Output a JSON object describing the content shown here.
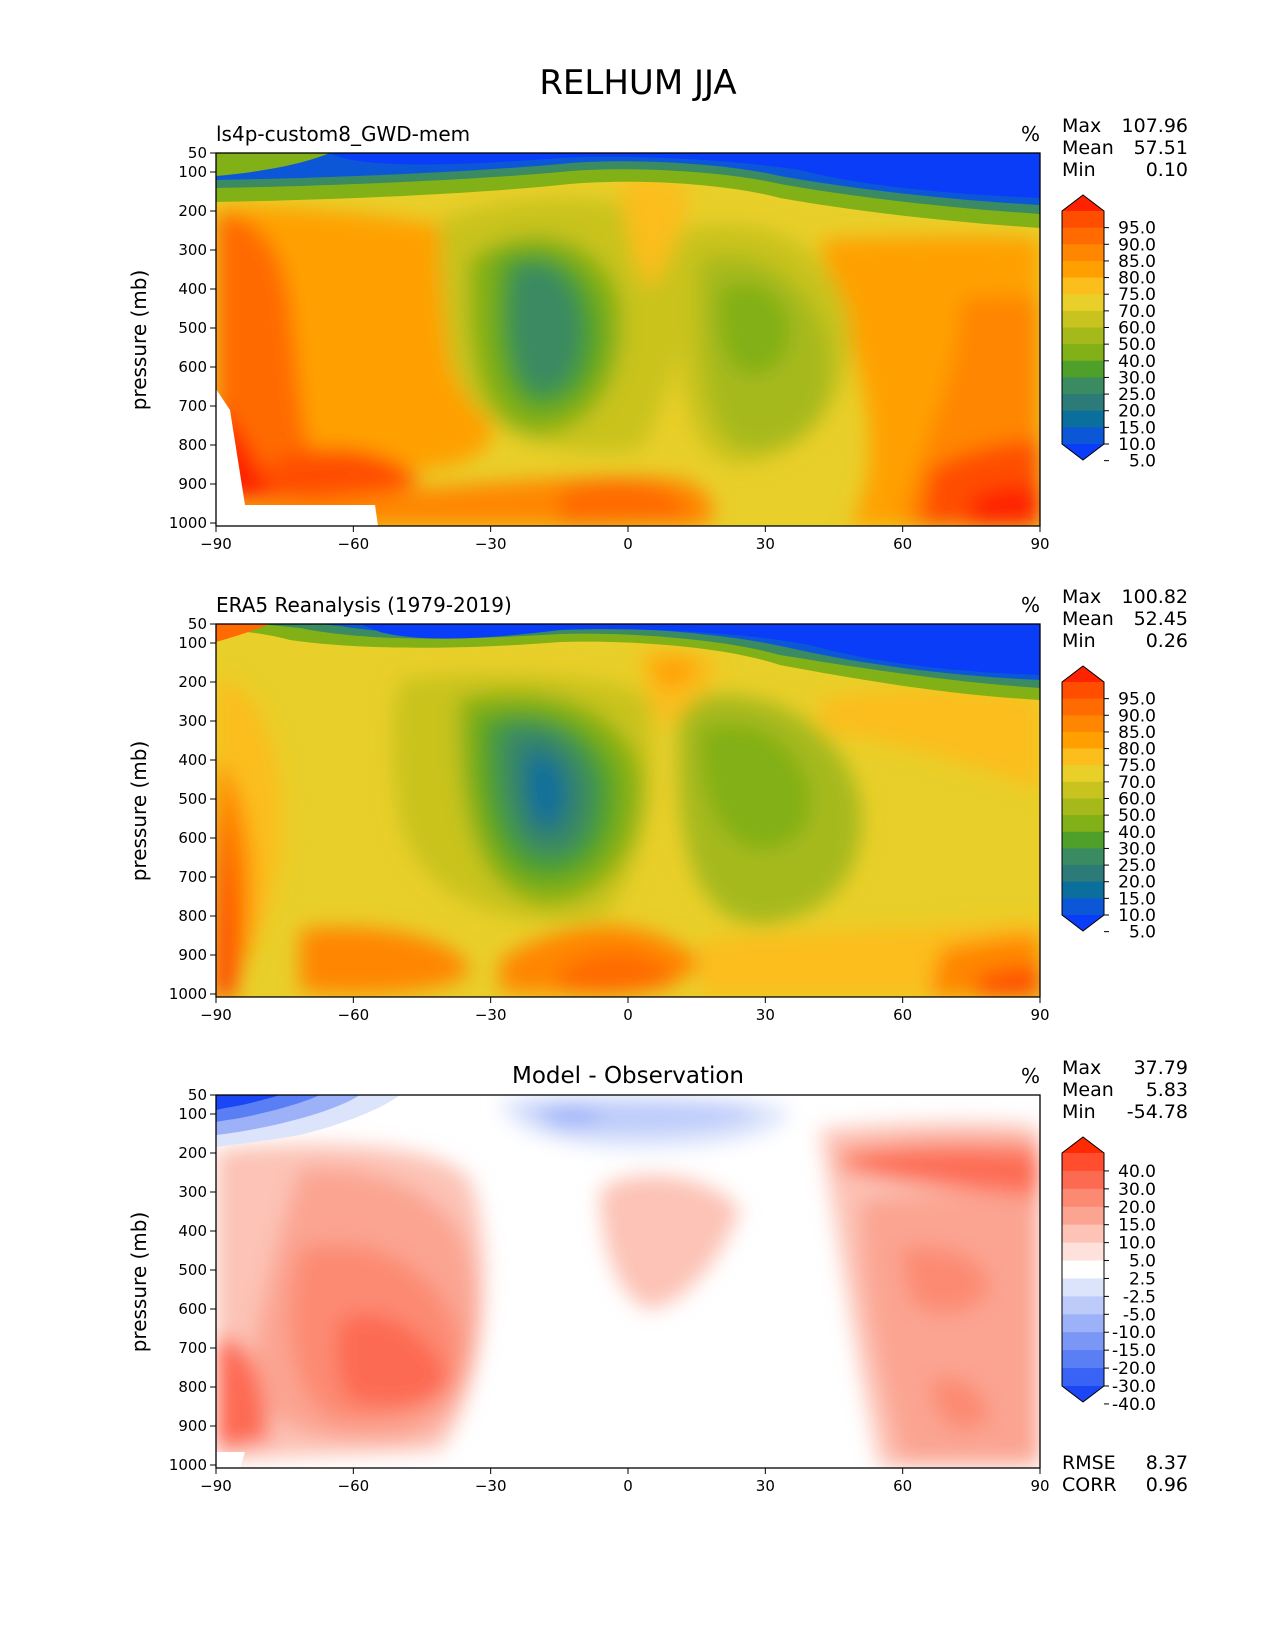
{
  "figure_title": "RELHUM JJA",
  "chart_data": [
    {
      "type": "heatmap",
      "title": "ls4p-custom8_GWD-mem",
      "units": "%",
      "ylabel": "pressure (mb)",
      "x_ticks": [
        "−90",
        "−60",
        "−30",
        "0",
        "30",
        "60",
        "90"
      ],
      "y_ticks": [
        "50",
        "100",
        "200",
        "300",
        "400",
        "500",
        "600",
        "700",
        "800",
        "900",
        "1000"
      ],
      "xlim": [
        -90,
        90
      ],
      "ylim": [
        1000,
        50
      ],
      "stats": [
        {
          "label": "Max",
          "value": "107.96"
        },
        {
          "label": "Mean",
          "value": "57.51"
        },
        {
          "label": "Min",
          "value": "0.10"
        }
      ],
      "colorbar": {
        "labels": [
          "95.0",
          "90.0",
          "85.0",
          "80.0",
          "75.0",
          "70.0",
          "60.0",
          "50.0",
          "40.0",
          "30.0",
          "25.0",
          "20.0",
          "15.0",
          "10.0",
          "5.0"
        ],
        "colors": [
          "#ff2200",
          "#ff4e00",
          "#ff6b00",
          "#ff8600",
          "#ffa000",
          "#fbbe1c",
          "#e9cf2a",
          "#c9c31f",
          "#a6b91b",
          "#82b017",
          "#4ea02a",
          "#3a8a62",
          "#2c7b78",
          "#0a6f9c",
          "#0c57d8",
          "#0a3df8"
        ]
      }
    },
    {
      "type": "heatmap",
      "title": "ERA5 Reanalysis (1979-2019)",
      "units": "%",
      "ylabel": "pressure (mb)",
      "x_ticks": [
        "−90",
        "−60",
        "−30",
        "0",
        "30",
        "60",
        "90"
      ],
      "y_ticks": [
        "50",
        "100",
        "200",
        "300",
        "400",
        "500",
        "600",
        "700",
        "800",
        "900",
        "1000"
      ],
      "xlim": [
        -90,
        90
      ],
      "ylim": [
        1000,
        50
      ],
      "stats": [
        {
          "label": "Max",
          "value": "100.82"
        },
        {
          "label": "Mean",
          "value": "52.45"
        },
        {
          "label": "Min",
          "value": "0.26"
        }
      ],
      "colorbar": {
        "labels": [
          "95.0",
          "90.0",
          "85.0",
          "80.0",
          "75.0",
          "70.0",
          "60.0",
          "50.0",
          "40.0",
          "30.0",
          "25.0",
          "20.0",
          "15.0",
          "10.0",
          "5.0"
        ],
        "colors": [
          "#ff2200",
          "#ff4e00",
          "#ff6b00",
          "#ff8600",
          "#ffa000",
          "#fbbe1c",
          "#e9cf2a",
          "#c9c31f",
          "#a6b91b",
          "#82b017",
          "#4ea02a",
          "#3a8a62",
          "#2c7b78",
          "#0a6f9c",
          "#0c57d8",
          "#0a3df8"
        ]
      }
    },
    {
      "type": "heatmap",
      "title": "Model - Observation",
      "units": "%",
      "ylabel": "pressure (mb)",
      "x_ticks": [
        "−90",
        "−60",
        "−30",
        "0",
        "30",
        "60",
        "90"
      ],
      "y_ticks": [
        "50",
        "100",
        "200",
        "300",
        "400",
        "500",
        "600",
        "700",
        "800",
        "900",
        "1000"
      ],
      "xlim": [
        -90,
        90
      ],
      "ylim": [
        1000,
        50
      ],
      "stats": [
        {
          "label": "Max",
          "value": "37.79"
        },
        {
          "label": "Mean",
          "value": "5.83"
        },
        {
          "label": "Min",
          "value": "-54.78"
        }
      ],
      "metrics": [
        {
          "label": "RMSE",
          "value": "8.37"
        },
        {
          "label": "CORR",
          "value": "0.96"
        }
      ],
      "colorbar": {
        "labels": [
          "40.0",
          "30.0",
          "20.0",
          "15.0",
          "10.0",
          "5.0",
          "2.5",
          "-2.5",
          "-5.0",
          "-10.0",
          "-15.0",
          "-20.0",
          "-30.0",
          "-40.0"
        ],
        "colors": [
          "#ff2a00",
          "#ff4d2e",
          "#fd6a52",
          "#fc8a72",
          "#fba492",
          "#fcc3b6",
          "#fde1da",
          "#ffffff",
          "#dce4fc",
          "#bccbfa",
          "#9cb1f8",
          "#7b97f6",
          "#5a7ef4",
          "#3863f4",
          "#1a46f6"
        ]
      }
    }
  ]
}
